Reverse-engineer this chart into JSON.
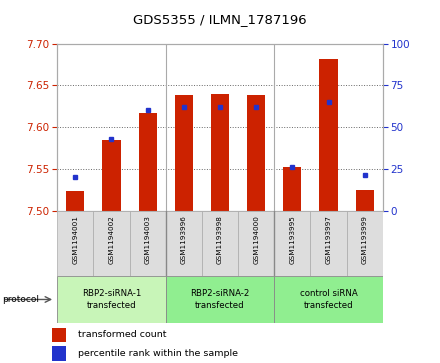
{
  "title": "GDS5355 / ILMN_1787196",
  "samples": [
    "GSM1194001",
    "GSM1194002",
    "GSM1194003",
    "GSM1193996",
    "GSM1193998",
    "GSM1194000",
    "GSM1193995",
    "GSM1193997",
    "GSM1193999"
  ],
  "red_values": [
    7.523,
    7.585,
    7.617,
    7.638,
    7.639,
    7.638,
    7.552,
    7.682,
    7.525
  ],
  "blue_values_pct": [
    20,
    43,
    60,
    62,
    62,
    62,
    26,
    65,
    21
  ],
  "ylim_left": [
    7.5,
    7.7
  ],
  "ylim_right": [
    0,
    100
  ],
  "yticks_left": [
    7.5,
    7.55,
    7.6,
    7.65,
    7.7
  ],
  "yticks_right": [
    0,
    25,
    50,
    75,
    100
  ],
  "groups": [
    {
      "label": "RBP2-siRNA-1\ntransfected",
      "start": 0,
      "end": 3
    },
    {
      "label": "RBP2-siRNA-2\ntransfected",
      "start": 3,
      "end": 6
    },
    {
      "label": "control siRNA\ntransfected",
      "start": 6,
      "end": 9
    }
  ],
  "group_colors": [
    "#c8f5b8",
    "#90ee90",
    "#90ee90"
  ],
  "bar_width": 0.5,
  "red_color": "#cc2200",
  "blue_color": "#2233cc",
  "legend_red": "transformed count",
  "legend_blue": "percentile rank within the sample",
  "protocol_label": "protocol"
}
